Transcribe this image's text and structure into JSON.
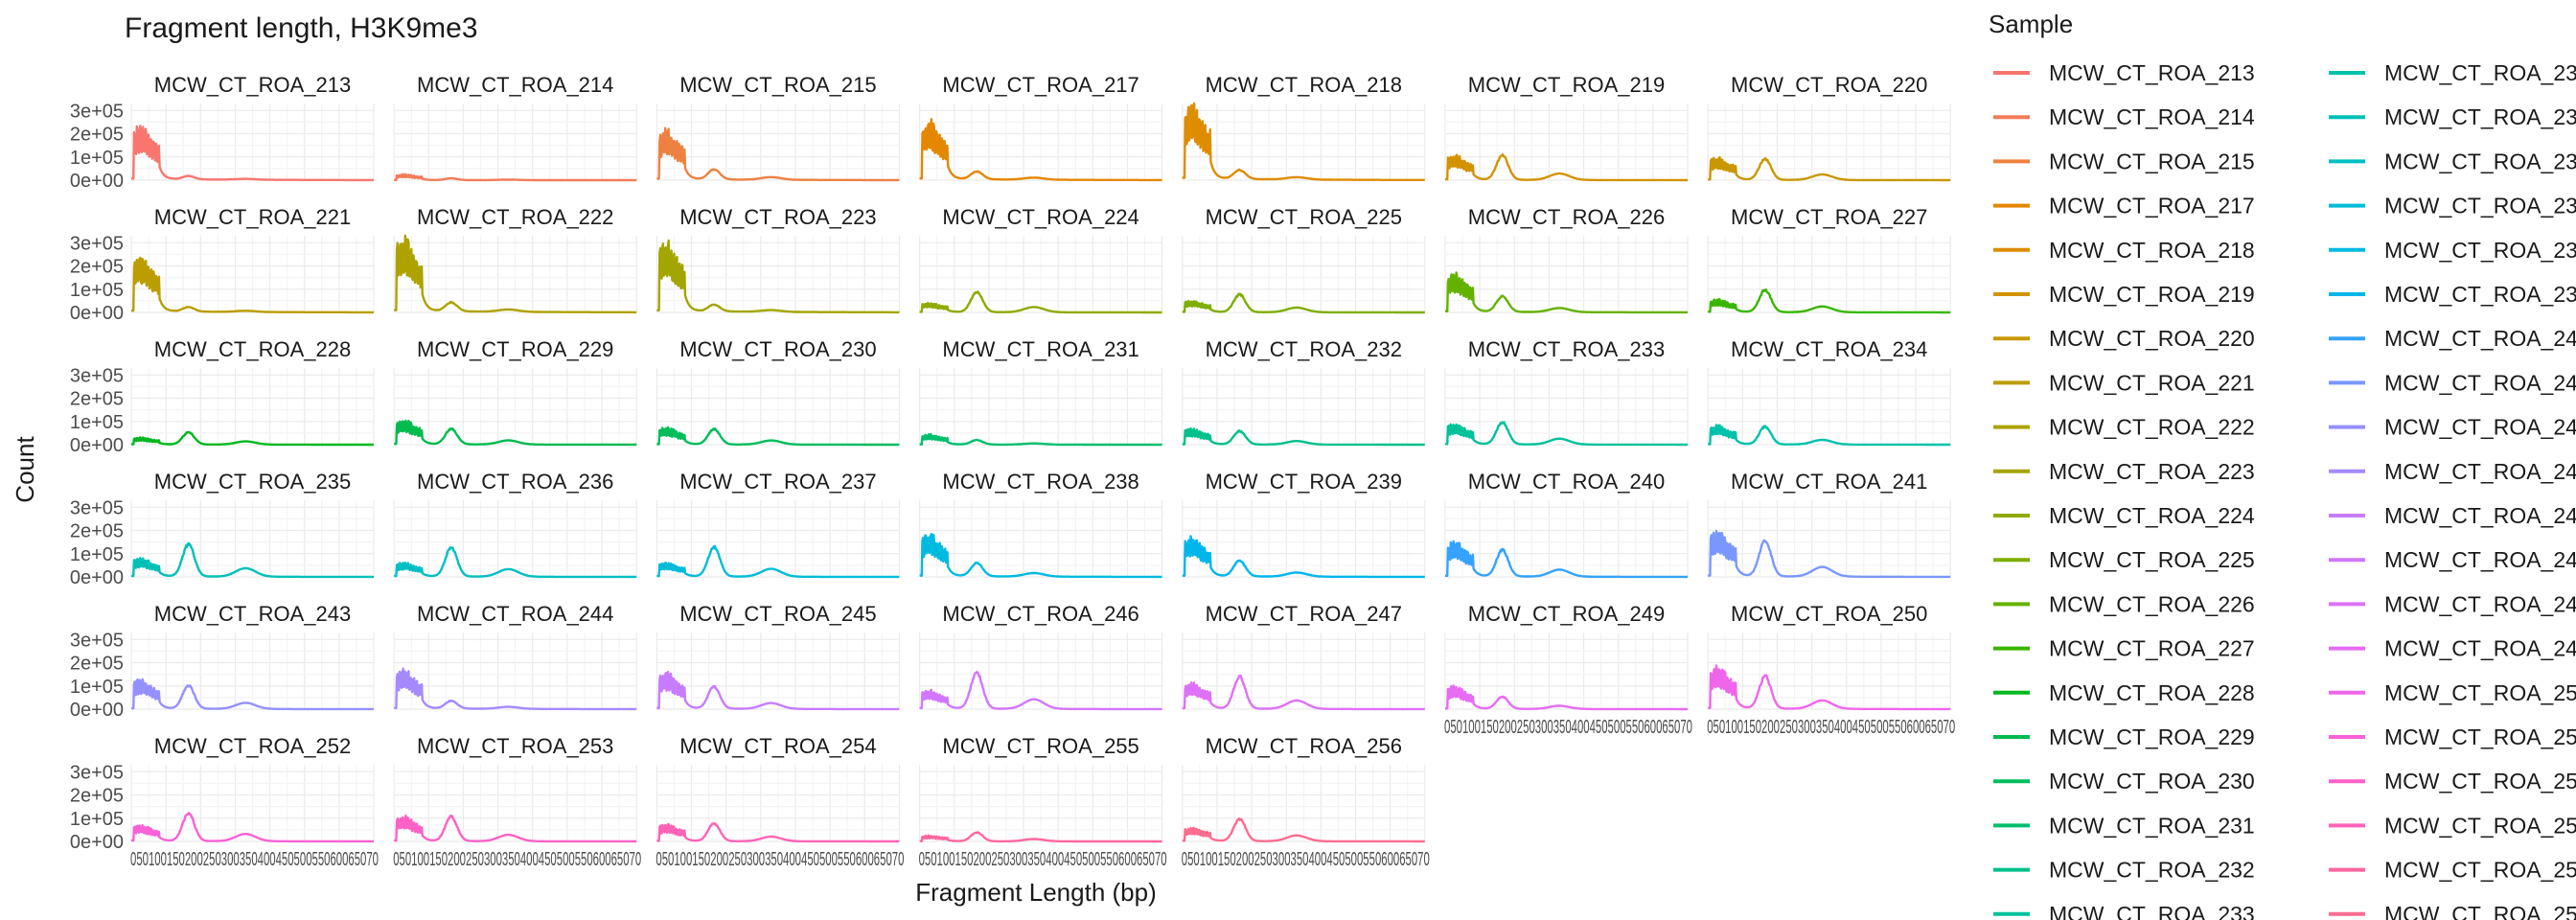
{
  "chart_data": {
    "type": "line",
    "title": "Fragment length, H3K9me3",
    "xlabel": "Fragment Length (bp)",
    "ylabel": "Count",
    "legend_title": "Sample",
    "legend_position": "right",
    "grid": true,
    "x_range": [
      0,
      700
    ],
    "x_tick_label_text": "05010015020025030035040045050055060065070",
    "y_range": [
      0,
      330000
    ],
    "y_ticks": [
      0,
      100000,
      200000,
      300000
    ],
    "y_tick_labels": [
      "0e+00",
      "1e+05",
      "2e+05",
      "3e+05"
    ],
    "facets": [
      {
        "name": "MCW_CT_ROA_213",
        "color": "#F8766D",
        "mono_peak": 240000,
        "di_peak": 15000
      },
      {
        "name": "MCW_CT_ROA_214",
        "color": "#F37B59",
        "mono_peak": 25000,
        "di_peak": 8000
      },
      {
        "name": "MCW_CT_ROA_215",
        "color": "#ED8141",
        "mono_peak": 220000,
        "di_peak": 45000
      },
      {
        "name": "MCW_CT_ROA_217",
        "color": "#E58700",
        "mono_peak": 260000,
        "di_peak": 35000
      },
      {
        "name": "MCW_CT_ROA_218",
        "color": "#DE8C00",
        "mono_peak": 340000,
        "di_peak": 40000
      },
      {
        "name": "MCW_CT_ROA_219",
        "color": "#D39200",
        "mono_peak": 110000,
        "di_peak": 110000
      },
      {
        "name": "MCW_CT_ROA_220",
        "color": "#C99800",
        "mono_peak": 100000,
        "di_peak": 95000
      },
      {
        "name": "MCW_CT_ROA_221",
        "color": "#BB9D00",
        "mono_peak": 250000,
        "di_peak": 20000
      },
      {
        "name": "MCW_CT_ROA_222",
        "color": "#AEA200",
        "mono_peak": 330000,
        "di_peak": 40000
      },
      {
        "name": "MCW_CT_ROA_223",
        "color": "#A3A500",
        "mono_peak": 310000,
        "di_peak": 30000
      },
      {
        "name": "MCW_CT_ROA_224",
        "color": "#8FAA00",
        "mono_peak": 40000,
        "di_peak": 90000
      },
      {
        "name": "MCW_CT_ROA_225",
        "color": "#7DAE00",
        "mono_peak": 50000,
        "di_peak": 80000
      },
      {
        "name": "MCW_CT_ROA_226",
        "color": "#64B200",
        "mono_peak": 170000,
        "di_peak": 70000
      },
      {
        "name": "MCW_CT_ROA_227",
        "color": "#39B600",
        "mono_peak": 55000,
        "di_peak": 100000
      },
      {
        "name": "MCW_CT_ROA_228",
        "color": "#00B81F",
        "mono_peak": 30000,
        "di_peak": 55000
      },
      {
        "name": "MCW_CT_ROA_229",
        "color": "#00BB4E",
        "mono_peak": 110000,
        "di_peak": 70000
      },
      {
        "name": "MCW_CT_ROA_230",
        "color": "#00BD5C",
        "mono_peak": 75000,
        "di_peak": 70000
      },
      {
        "name": "MCW_CT_ROA_231",
        "color": "#00BE6C",
        "mono_peak": 45000,
        "di_peak": 20000
      },
      {
        "name": "MCW_CT_ROA_232",
        "color": "#00C08B",
        "mono_peak": 70000,
        "di_peak": 60000
      },
      {
        "name": "MCW_CT_ROA_233",
        "color": "#00C19A",
        "mono_peak": 90000,
        "di_peak": 100000
      },
      {
        "name": "MCW_CT_ROA_234",
        "color": "#00C1AA",
        "mono_peak": 85000,
        "di_peak": 80000
      },
      {
        "name": "MCW_CT_ROA_235",
        "color": "#00C0B8",
        "mono_peak": 80000,
        "di_peak": 145000
      },
      {
        "name": "MCW_CT_ROA_236",
        "color": "#00BFC4",
        "mono_peak": 60000,
        "di_peak": 130000
      },
      {
        "name": "MCW_CT_ROA_237",
        "color": "#00BCD8",
        "mono_peak": 60000,
        "di_peak": 135000
      },
      {
        "name": "MCW_CT_ROA_238",
        "color": "#00BAE0",
        "mono_peak": 190000,
        "di_peak": 60000
      },
      {
        "name": "MCW_CT_ROA_239",
        "color": "#00B6EB",
        "mono_peak": 175000,
        "di_peak": 70000
      },
      {
        "name": "MCW_CT_ROA_240",
        "color": "#35A2FF",
        "mono_peak": 155000,
        "di_peak": 120000
      },
      {
        "name": "MCW_CT_ROA_241",
        "color": "#7997FF",
        "mono_peak": 200000,
        "di_peak": 165000
      },
      {
        "name": "MCW_CT_ROA_243",
        "color": "#9590FF",
        "mono_peak": 130000,
        "di_peak": 105000
      },
      {
        "name": "MCW_CT_ROA_244",
        "color": "#A58AFF",
        "mono_peak": 175000,
        "di_peak": 35000
      },
      {
        "name": "MCW_CT_ROA_245",
        "color": "#C77CFF",
        "mono_peak": 160000,
        "di_peak": 100000
      },
      {
        "name": "MCW_CT_ROA_246",
        "color": "#D376FF",
        "mono_peak": 80000,
        "di_peak": 165000
      },
      {
        "name": "MCW_CT_ROA_247",
        "color": "#DF70F8",
        "mono_peak": 115000,
        "di_peak": 145000
      },
      {
        "name": "MCW_CT_ROA_249",
        "color": "#E76BF3",
        "mono_peak": 100000,
        "di_peak": 55000
      },
      {
        "name": "MCW_CT_ROA_250",
        "color": "#F066EA",
        "mono_peak": 185000,
        "di_peak": 145000
      },
      {
        "name": "MCW_CT_ROA_252",
        "color": "#F862D6",
        "mono_peak": 70000,
        "di_peak": 125000
      },
      {
        "name": "MCW_CT_ROA_253",
        "color": "#FC61C5",
        "mono_peak": 110000,
        "di_peak": 110000
      },
      {
        "name": "MCW_CT_ROA_254",
        "color": "#FF63B6",
        "mono_peak": 75000,
        "di_peak": 80000
      },
      {
        "name": "MCW_CT_ROA_255",
        "color": "#FF66A1",
        "mono_peak": 25000,
        "di_peak": 40000
      },
      {
        "name": "MCW_CT_ROA_256",
        "color": "#FF6C90",
        "mono_peak": 60000,
        "di_peak": 100000
      }
    ]
  }
}
